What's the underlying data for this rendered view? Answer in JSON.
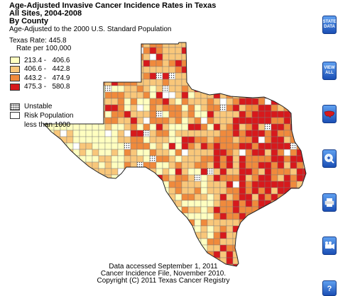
{
  "title": {
    "line1": "Age-Adjusted Invasive Cancer Incidence Rates in Texas",
    "line2": "All Sites, 2004-2008",
    "line3": "By County",
    "line4": "Age-Adjusted to the 2000 U.S. Standard Population"
  },
  "legend": {
    "state_rate": "Texas Rate: 445.8",
    "rate_per": "Rate per 100,000",
    "classes": [
      {
        "range": "213.4 -   406.6",
        "color": "#ffffc0"
      },
      {
        "range": "406.6 -   442.8",
        "color": "#f9c77a"
      },
      {
        "range": "443.2 -   474.9",
        "color": "#f08a3c"
      },
      {
        "range": "475.3 -   580.8",
        "color": "#d7191c"
      }
    ],
    "unstable": "Unstable",
    "risk_line1": "Risk Population",
    "risk_line2": "less than 1000"
  },
  "footer": {
    "line1": "Data accessed September 1, 2011",
    "line2": "Cancer Incidence File, November 2010.",
    "line3": "Copyright (C) 2011 Texas Cancer Registry"
  },
  "buttons": {
    "state_data_line1": "STATE",
    "state_data_line2": "DATA",
    "view_all_line1": "VIEW",
    "view_all_line2": "ALL",
    "icons": [
      "us-map-icon",
      "zoom-icon",
      "print-icon",
      "video-camera-icon",
      "help-icon"
    ]
  }
}
